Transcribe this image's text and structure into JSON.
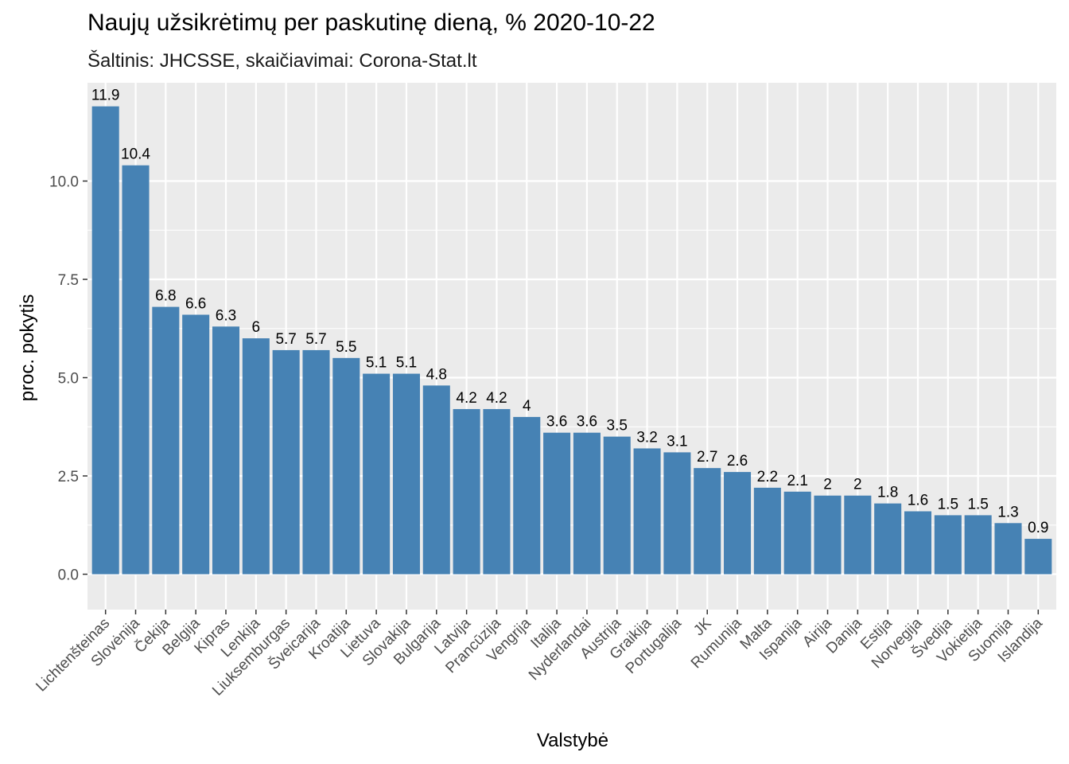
{
  "chart_data": {
    "type": "bar",
    "title": "Naujų užsikrėtimų per paskutinę dieną, %  2020-10-22",
    "subtitle": "Šaltinis: JHCSSE, skaičiavimai: Corona-Stat.lt",
    "xlabel": "Valstybė",
    "ylabel": "proc. pokytis",
    "ylim": [
      -0.9,
      12.5
    ],
    "yticks": [
      0.0,
      2.5,
      5.0,
      7.5,
      10.0
    ],
    "ytick_labels": [
      "0.0",
      "2.5",
      "5.0",
      "7.5",
      "10.0"
    ],
    "grid": true,
    "bar_color": "#4682b4",
    "panel_color": "#ebebeb",
    "categories": [
      "Lichtenšteinas",
      "Slovėnija",
      "Čekija",
      "Belgija",
      "Kipras",
      "Lenkija",
      "Liuksemburgas",
      "Šveicarija",
      "Kroatija",
      "Lietuva",
      "Slovakija",
      "Bulgarija",
      "Latvija",
      "Prancūzija",
      "Vengrija",
      "Italija",
      "Nyderlandai",
      "Austrija",
      "Graikija",
      "Portugalija",
      "JK",
      "Rumunija",
      "Malta",
      "Ispanija",
      "Airija",
      "Danija",
      "Estija",
      "Norvegija",
      "Švedija",
      "Vokietija",
      "Suomija",
      "Islandija"
    ],
    "values": [
      11.9,
      10.4,
      6.8,
      6.6,
      6.3,
      6,
      5.7,
      5.7,
      5.5,
      5.1,
      5.1,
      4.8,
      4.2,
      4.2,
      4,
      3.6,
      3.6,
      3.5,
      3.2,
      3.1,
      2.7,
      2.6,
      2.2,
      2.1,
      2,
      2,
      1.8,
      1.6,
      1.5,
      1.5,
      1.3,
      0.9
    ],
    "value_labels": [
      "11.9",
      "10.4",
      "6.8",
      "6.6",
      "6.3",
      "6",
      "5.7",
      "5.7",
      "5.5",
      "5.1",
      "5.1",
      "4.8",
      "4.2",
      "4.2",
      "4",
      "3.6",
      "3.6",
      "3.5",
      "3.2",
      "3.1",
      "2.7",
      "2.6",
      "2.2",
      "2.1",
      "2",
      "2",
      "1.8",
      "1.6",
      "1.5",
      "1.5",
      "1.3",
      "0.9"
    ]
  }
}
